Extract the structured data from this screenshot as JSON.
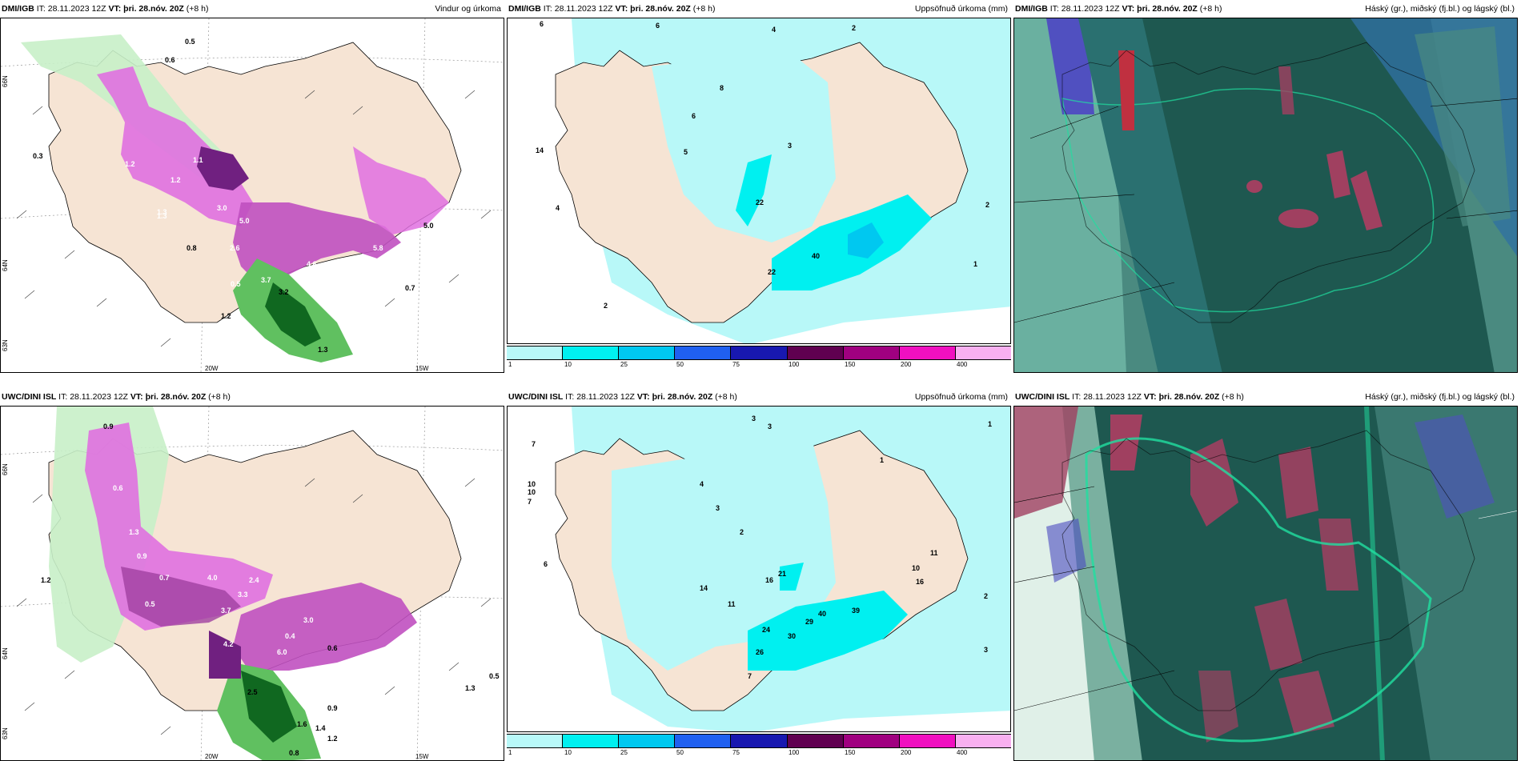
{
  "panels": {
    "p1": {
      "model": "DMI/IGB",
      "it_label": "IT:",
      "it": "28.11.2023 12Z",
      "vt_label": "VT:",
      "vt": "þri. 28.nóv. 20Z",
      "lead": "(+8 h)",
      "title": "Vindur og úrkoma"
    },
    "p2": {
      "model": "DMI/IGB",
      "it_label": "IT:",
      "it": "28.11.2023 12Z",
      "vt_label": "VT:",
      "vt": "þri. 28.nóv. 20Z",
      "lead": "(+8 h)",
      "title": "Uppsöfnuð úrkoma (mm)"
    },
    "p3": {
      "model": "DMI/IGB",
      "it_label": "IT:",
      "it": "28.11.2023 12Z",
      "vt_label": "VT:",
      "vt": "þri. 28.nóv. 20Z",
      "lead": "(+8 h)",
      "title": "Háský (gr.), miðský (fj.bl.) og lágský (bl.)"
    },
    "p4": {
      "model": "UWC/DINI ISL",
      "it_label": "IT:",
      "it": "28.11.2023 12Z",
      "vt_label": "VT:",
      "vt": "þri. 28.nóv. 20Z",
      "lead": "(+8 h)",
      "title": ""
    },
    "p5": {
      "model": "UWC/DINI ISL",
      "it_label": "IT:",
      "it": "28.11.2023 12Z",
      "vt_label": "VT:",
      "vt": "þri. 28.nóv. 20Z",
      "lead": "(+8 h)",
      "title": "Uppsöfnuð úrkoma (mm)"
    },
    "p6": {
      "model": "UWC/DINI ISL",
      "it_label": "IT:",
      "it": "28.11.2023 12Z",
      "vt_label": "VT:",
      "vt": "þri. 28.nóv. 20Z",
      "lead": "(+8 h)",
      "title": "Háský (gr.), miðský (fj.bl.) og lágský (bl.)"
    }
  },
  "axes": {
    "lon_left": "20W",
    "lon_right": "15W",
    "lat_top": "66N",
    "lat_mid": "64N",
    "lat_bottom": "63N"
  },
  "colorbar": {
    "ticks": [
      "1",
      "10",
      "25",
      "50",
      "75",
      "100",
      "150",
      "200",
      "400"
    ],
    "colors": [
      "#b8f8f8",
      "#00f0f0",
      "#00c8f0",
      "#2060f0",
      "#1818b0",
      "#600050",
      "#a00080",
      "#f010c0",
      "#f8b0f0"
    ]
  },
  "precip_labels_top": [
    "0.5",
    "0.6",
    "0.3",
    "1.2",
    "1.2",
    "1.1",
    "1.3",
    "3.0",
    "5.0",
    "2.6",
    "0.8",
    "4.6",
    "5.2",
    "5.8",
    "5.0",
    "0.7",
    "3.2",
    "3.7",
    "0.5",
    "1.2",
    "1.3",
    "1.3"
  ],
  "accum_labels_top": [
    "6",
    "6",
    "4",
    "2",
    "8",
    "6",
    "5",
    "3",
    "14",
    "4",
    "22",
    "40",
    "22",
    "2",
    "2",
    "1"
  ],
  "precip_labels_bottom": [
    "0.9",
    "0.6",
    "1.2",
    "1.3",
    "0.9",
    "0.7",
    "0.5",
    "4.0",
    "2.4",
    "3.3",
    "3.0",
    "3.7",
    "0.6",
    "4.2",
    "6.0",
    "0.4",
    "2.5",
    "1.6",
    "1.4",
    "1.2",
    "0.8",
    "0.9",
    "1.3",
    "0.5"
  ],
  "accum_labels_bottom": [
    "3",
    "3",
    "7",
    "10",
    "10",
    "7",
    "6",
    "4",
    "3",
    "2",
    "1",
    "14",
    "11",
    "21",
    "16",
    "29",
    "40",
    "30",
    "24",
    "26",
    "39",
    "10",
    "16",
    "11",
    "7",
    "3",
    "2",
    "1"
  ],
  "colors": {
    "land": "#f6e4d4",
    "ocean": "#ffffff",
    "green_light": "#c8f0c8",
    "green_mid": "#60c060",
    "green_dark": "#106820",
    "purple_light": "#e060e0",
    "purple_mid": "#c040c0",
    "purple_dark": "#702080",
    "cloud_dark": "#1e6050",
    "cloud_mid": "#2aa080",
    "cloud_blue": "#3060a0"
  }
}
